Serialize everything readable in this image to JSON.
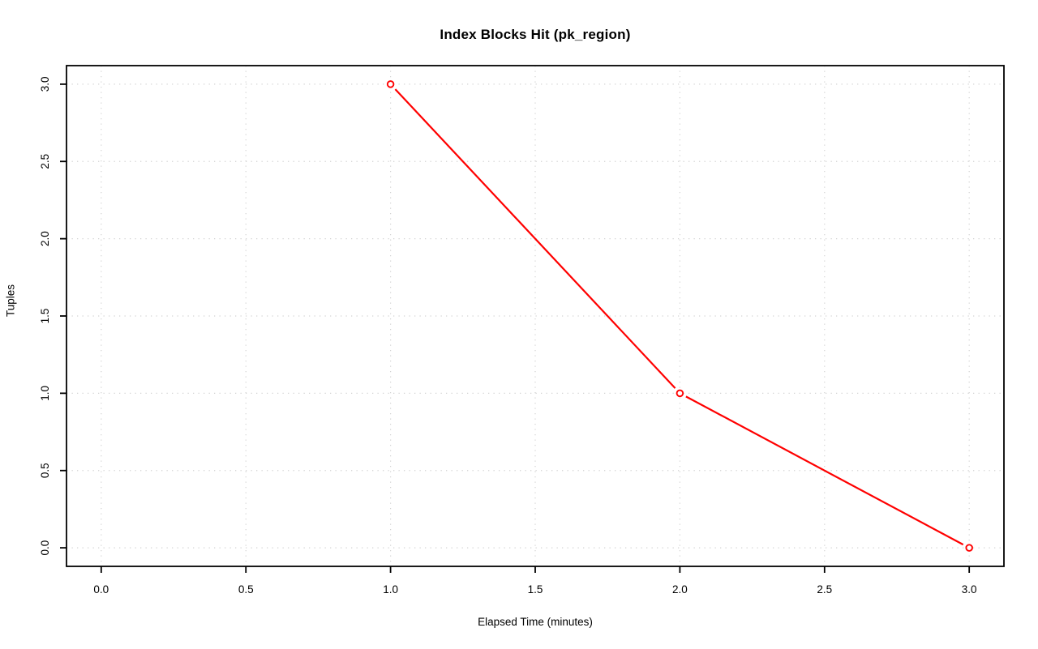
{
  "chart_data": {
    "type": "line",
    "title": "Index Blocks Hit (pk_region)",
    "xlabel": "Elapsed Time (minutes)",
    "ylabel": "Tuples",
    "x": [
      1.0,
      2.0,
      3.0
    ],
    "y": [
      3.0,
      1.0,
      0.0
    ],
    "xticks": [
      0.0,
      0.5,
      1.0,
      1.5,
      2.0,
      2.5,
      3.0
    ],
    "yticks": [
      0.0,
      0.5,
      1.0,
      1.5,
      2.0,
      2.5,
      3.0
    ],
    "xtick_labels": [
      "0.0",
      "0.5",
      "1.0",
      "1.5",
      "2.0",
      "2.5",
      "3.0"
    ],
    "ytick_labels": [
      "0.0",
      "0.5",
      "1.0",
      "1.5",
      "2.0",
      "2.5",
      "3.0"
    ],
    "xlim": [
      -0.12,
      3.12
    ],
    "ylim": [
      -0.12,
      3.12
    ],
    "grid": "dotted",
    "legend": "none",
    "marker": "open-circle",
    "line_type": "segments-with-marker-gaps",
    "colors": {
      "line": "#ff0000",
      "marker": "#ff0000",
      "grid": "#d3d3d3",
      "axis": "#000000",
      "text": "#000000",
      "background": "#ffffff"
    }
  }
}
